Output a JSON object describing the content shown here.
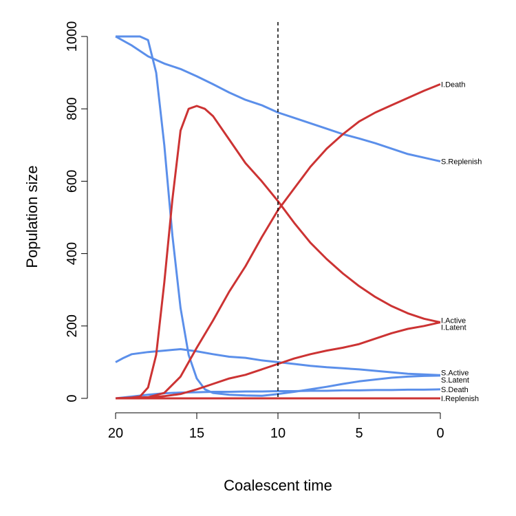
{
  "chart_data": {
    "type": "line",
    "xlabel": "Coalescent time",
    "ylabel": "Population size",
    "xlim": [
      20,
      0
    ],
    "ylim": [
      0,
      1000
    ],
    "x_reversed": true,
    "x_ticks": [
      20,
      15,
      10,
      5,
      0
    ],
    "y_ticks": [
      0,
      200,
      400,
      600,
      800,
      1000
    ],
    "vline": {
      "x": 10,
      "style": "dashed"
    },
    "grid": false,
    "legend": "none (series labelled at right end)",
    "colors": {
      "S": "#5B8FEA",
      "I": "#CC3333"
    },
    "series": [
      {
        "name": "S.Replenish",
        "group": "S",
        "x": [
          20,
          19,
          18,
          17,
          16,
          15,
          14,
          13,
          12,
          11,
          10,
          9,
          8,
          7,
          6,
          5,
          4,
          3,
          2,
          1,
          0
        ],
        "y": [
          1000,
          975,
          945,
          925,
          910,
          890,
          868,
          845,
          825,
          810,
          790,
          775,
          760,
          745,
          730,
          718,
          705,
          690,
          675,
          665,
          655
        ]
      },
      {
        "name": "S.Active",
        "group": "S",
        "x": [
          20,
          19.5,
          19,
          18,
          17,
          16,
          15,
          14,
          13,
          12,
          11,
          10,
          9,
          8,
          7,
          6,
          5,
          4,
          3,
          2,
          1,
          0
        ],
        "y": [
          100,
          112,
          122,
          128,
          132,
          136,
          130,
          122,
          115,
          112,
          105,
          100,
          95,
          90,
          86,
          83,
          80,
          76,
          72,
          68,
          66,
          64
        ]
      },
      {
        "name": "S.Latent",
        "group": "S",
        "x": [
          20,
          19,
          18.5,
          18,
          17.5,
          17,
          16.5,
          16,
          15.5,
          15,
          14.5,
          14,
          13,
          12,
          11,
          10,
          9,
          8,
          7,
          6,
          5,
          4,
          3,
          2,
          1,
          0
        ],
        "y": [
          1000,
          1000,
          1000,
          990,
          900,
          700,
          450,
          250,
          120,
          55,
          25,
          15,
          10,
          8,
          7,
          12,
          18,
          25,
          32,
          40,
          47,
          52,
          57,
          60,
          62,
          63
        ]
      },
      {
        "name": "S.Death",
        "group": "S",
        "x": [
          20,
          19,
          18,
          17,
          16,
          15,
          14,
          13,
          12,
          11,
          10,
          9,
          8,
          7,
          6,
          5,
          4,
          3,
          2,
          1,
          0
        ],
        "y": [
          0,
          5,
          10,
          14,
          16,
          17,
          18,
          18,
          19,
          19,
          20,
          20,
          21,
          21,
          22,
          22,
          23,
          23,
          24,
          24,
          25
        ]
      },
      {
        "name": "I.Death",
        "group": "I",
        "x": [
          20,
          18,
          17,
          16,
          15,
          14,
          13,
          12,
          11,
          10,
          9,
          8,
          7,
          6,
          5,
          4,
          3,
          2,
          1,
          0
        ],
        "y": [
          0,
          3,
          15,
          60,
          140,
          215,
          295,
          365,
          445,
          520,
          580,
          640,
          690,
          730,
          765,
          790,
          810,
          830,
          850,
          868
        ]
      },
      {
        "name": "I.Active",
        "group": "I",
        "x": [
          20,
          19,
          18.5,
          18,
          17.5,
          17,
          16.5,
          16,
          15.5,
          15,
          14.5,
          14,
          13,
          12,
          11,
          10,
          9,
          8,
          7,
          6,
          5,
          4,
          3,
          2,
          1,
          0
        ],
        "y": [
          0,
          2,
          5,
          30,
          120,
          320,
          550,
          740,
          800,
          808,
          800,
          780,
          715,
          650,
          600,
          545,
          485,
          430,
          385,
          345,
          310,
          280,
          255,
          235,
          220,
          210
        ]
      },
      {
        "name": "I.Latent",
        "group": "I",
        "x": [
          20,
          18,
          17,
          16,
          15,
          14,
          13,
          12,
          11,
          10,
          9,
          8,
          7,
          6,
          5,
          4,
          3,
          2,
          1,
          0
        ],
        "y": [
          0,
          2,
          6,
          12,
          25,
          40,
          55,
          65,
          80,
          95,
          110,
          122,
          132,
          140,
          150,
          165,
          180,
          192,
          200,
          210
        ]
      },
      {
        "name": "I.Replenish",
        "group": "I",
        "x": [
          20,
          0
        ],
        "y": [
          0,
          0
        ]
      }
    ]
  }
}
